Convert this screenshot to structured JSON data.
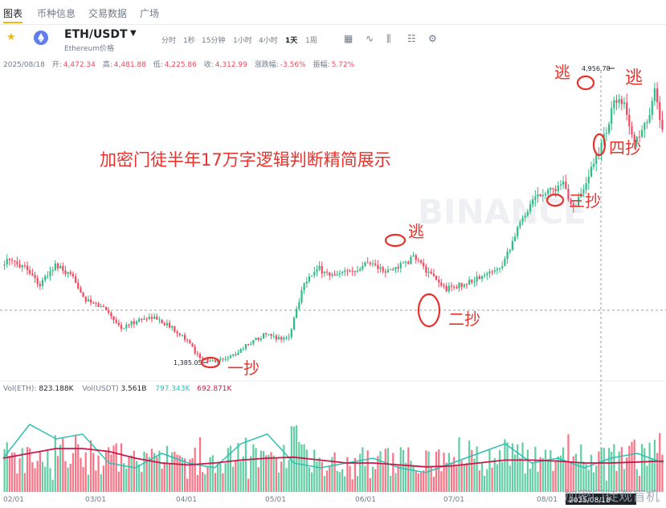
{
  "tabs": [
    "图表",
    "币种信息",
    "交易数据",
    "广场"
  ],
  "pair": {
    "symbol": "ETH/USDT",
    "subtitle": "Ethereum价格"
  },
  "timeframes": [
    "分时",
    "1秒",
    "15分钟",
    "1小时",
    "4小时",
    "1天",
    "1周"
  ],
  "active_timeframe": "1天",
  "ohlc": {
    "date": "2025/08/18",
    "open_label": "开:",
    "open": "4,472.34",
    "high_label": "高:",
    "high": "4,481.88",
    "low_label": "低:",
    "low": "4,225.86",
    "close_label": "收:",
    "close": "4,312.99",
    "change_label": "涨跌幅:",
    "change": "-3.56%",
    "amp_label": "振幅:",
    "amp": "5.72%"
  },
  "volume_legend": {
    "vol_eth_label": "Vol(ETH):",
    "vol_eth": "823.188K",
    "vol_usdt_label": "Vol(USDT)",
    "vol_usdt": "3.561B",
    "ma1": "797.343K",
    "ma2": "692.871K"
  },
  "watermark": "BINANCE",
  "footer_watermark": "加密门徒观盲机",
  "colors": {
    "up": "#2ebd85",
    "down": "#f6465d",
    "annotation": "#e8322d",
    "ma_fast": "#30c0b4",
    "ma_slow": "#c9184a",
    "accent": "#f0b90b"
  },
  "annotation_texts": {
    "title": "加密门徒半年17万字逻辑判断精简展示",
    "buy1": "一抄",
    "buy2": "二抄",
    "buy3": "三抄",
    "buy4": "四抄",
    "escape1": "逃",
    "escape2": "逃",
    "escape3": "逃"
  },
  "chart_data": {
    "type": "candlestick",
    "symbol": "ETH/USDT",
    "interval": "1天",
    "x_tick_labels": [
      "02/01",
      "03/01",
      "04/01",
      "05/01",
      "06/01",
      "07/01",
      "08/01"
    ],
    "crosshair_date": "2025/08/18",
    "low_marker": "1,385.05",
    "high_marker": "4,956.78",
    "ylim": [
      1300,
      5150
    ],
    "close_path": [
      [
        0,
        2750
      ],
      [
        8,
        2700
      ],
      [
        14,
        2450
      ],
      [
        20,
        2700
      ],
      [
        28,
        2500
      ],
      [
        32,
        2250
      ],
      [
        40,
        2150
      ],
      [
        46,
        1900
      ],
      [
        52,
        2000
      ],
      [
        58,
        2050
      ],
      [
        64,
        1950
      ],
      [
        70,
        1820
      ],
      [
        76,
        1570
      ],
      [
        80,
        1480
      ],
      [
        84,
        1500
      ],
      [
        90,
        1560
      ],
      [
        96,
        1710
      ],
      [
        102,
        1820
      ],
      [
        108,
        1780
      ],
      [
        112,
        1790
      ],
      [
        118,
        2500
      ],
      [
        124,
        2650
      ],
      [
        130,
        2550
      ],
      [
        138,
        2650
      ],
      [
        144,
        2750
      ],
      [
        150,
        2600
      ],
      [
        156,
        2700
      ],
      [
        162,
        2800
      ],
      [
        166,
        2620
      ],
      [
        170,
        2500
      ],
      [
        174,
        2400
      ],
      [
        180,
        2450
      ],
      [
        186,
        2530
      ],
      [
        190,
        2580
      ],
      [
        196,
        2720
      ],
      [
        202,
        3150
      ],
      [
        208,
        3550
      ],
      [
        214,
        3650
      ],
      [
        220,
        3700
      ],
      [
        224,
        3450
      ],
      [
        228,
        3600
      ],
      [
        232,
        4000
      ],
      [
        236,
        4300
      ],
      [
        240,
        4750
      ],
      [
        244,
        4700
      ],
      [
        248,
        4250
      ],
      [
        252,
        4450
      ],
      [
        256,
        4880
      ],
      [
        259,
        4420
      ]
    ],
    "volume_ma_fast_shape": [
      0.35,
      0.7,
      0.55,
      0.6,
      0.3,
      0.25,
      0.4,
      0.3,
      0.25,
      0.5,
      0.6,
      0.3,
      0.25,
      0.3,
      0.35,
      0.25,
      0.2,
      0.3,
      0.4,
      0.5,
      0.3,
      0.35,
      0.25,
      0.35,
      0.4,
      0.3
    ],
    "volume_ma_slow_shape": [
      0.35,
      0.4,
      0.45,
      0.45,
      0.42,
      0.35,
      0.3,
      0.28,
      0.3,
      0.33,
      0.35,
      0.36,
      0.33,
      0.3,
      0.3,
      0.28,
      0.26,
      0.27,
      0.3,
      0.33,
      0.33,
      0.32,
      0.3,
      0.3,
      0.31,
      0.32
    ]
  }
}
